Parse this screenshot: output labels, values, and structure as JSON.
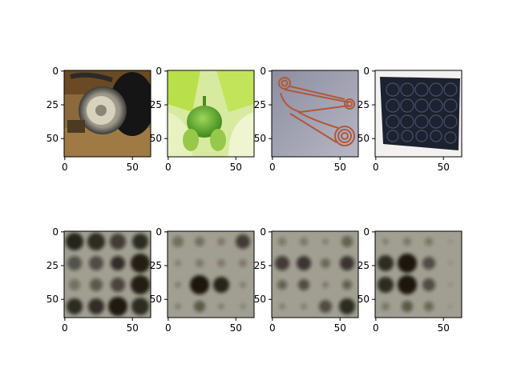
{
  "figure": {
    "panels": [
      {
        "row": 0,
        "col": 0,
        "content": "photo-rotary-phone",
        "xticks": [
          "0",
          "50"
        ],
        "yticks": [
          "0",
          "25",
          "50"
        ]
      },
      {
        "row": 0,
        "col": 1,
        "content": "photo-fig-plant",
        "xticks": [
          "0",
          "50"
        ],
        "yticks": [
          "0",
          "25",
          "50"
        ]
      },
      {
        "row": 0,
        "col": 2,
        "content": "photo-copper-pins",
        "xticks": [
          "0",
          "50"
        ],
        "yticks": [
          "0",
          "25",
          "50"
        ]
      },
      {
        "row": 0,
        "col": 3,
        "content": "photo-leather-wallet",
        "xticks": [
          "0",
          "50"
        ],
        "yticks": [
          "0",
          "25",
          "50"
        ]
      },
      {
        "row": 1,
        "col": 0,
        "content": "blob-pattern-1",
        "xticks": [
          "0",
          "50"
        ],
        "yticks": [
          "0",
          "25",
          "50"
        ]
      },
      {
        "row": 1,
        "col": 1,
        "content": "blob-pattern-2",
        "xticks": [
          "0",
          "50"
        ],
        "yticks": [
          "0",
          "25",
          "50"
        ]
      },
      {
        "row": 1,
        "col": 2,
        "content": "blob-pattern-3",
        "xticks": [
          "0",
          "50"
        ],
        "yticks": [
          "0",
          "25",
          "50"
        ]
      },
      {
        "row": 1,
        "col": 3,
        "content": "blob-pattern-4",
        "xticks": [
          "0",
          "50"
        ],
        "yticks": [
          "0",
          "25",
          "50"
        ]
      }
    ],
    "colors": {
      "blob_background": "#a09f92",
      "blob_dark": "#1a140c"
    }
  }
}
